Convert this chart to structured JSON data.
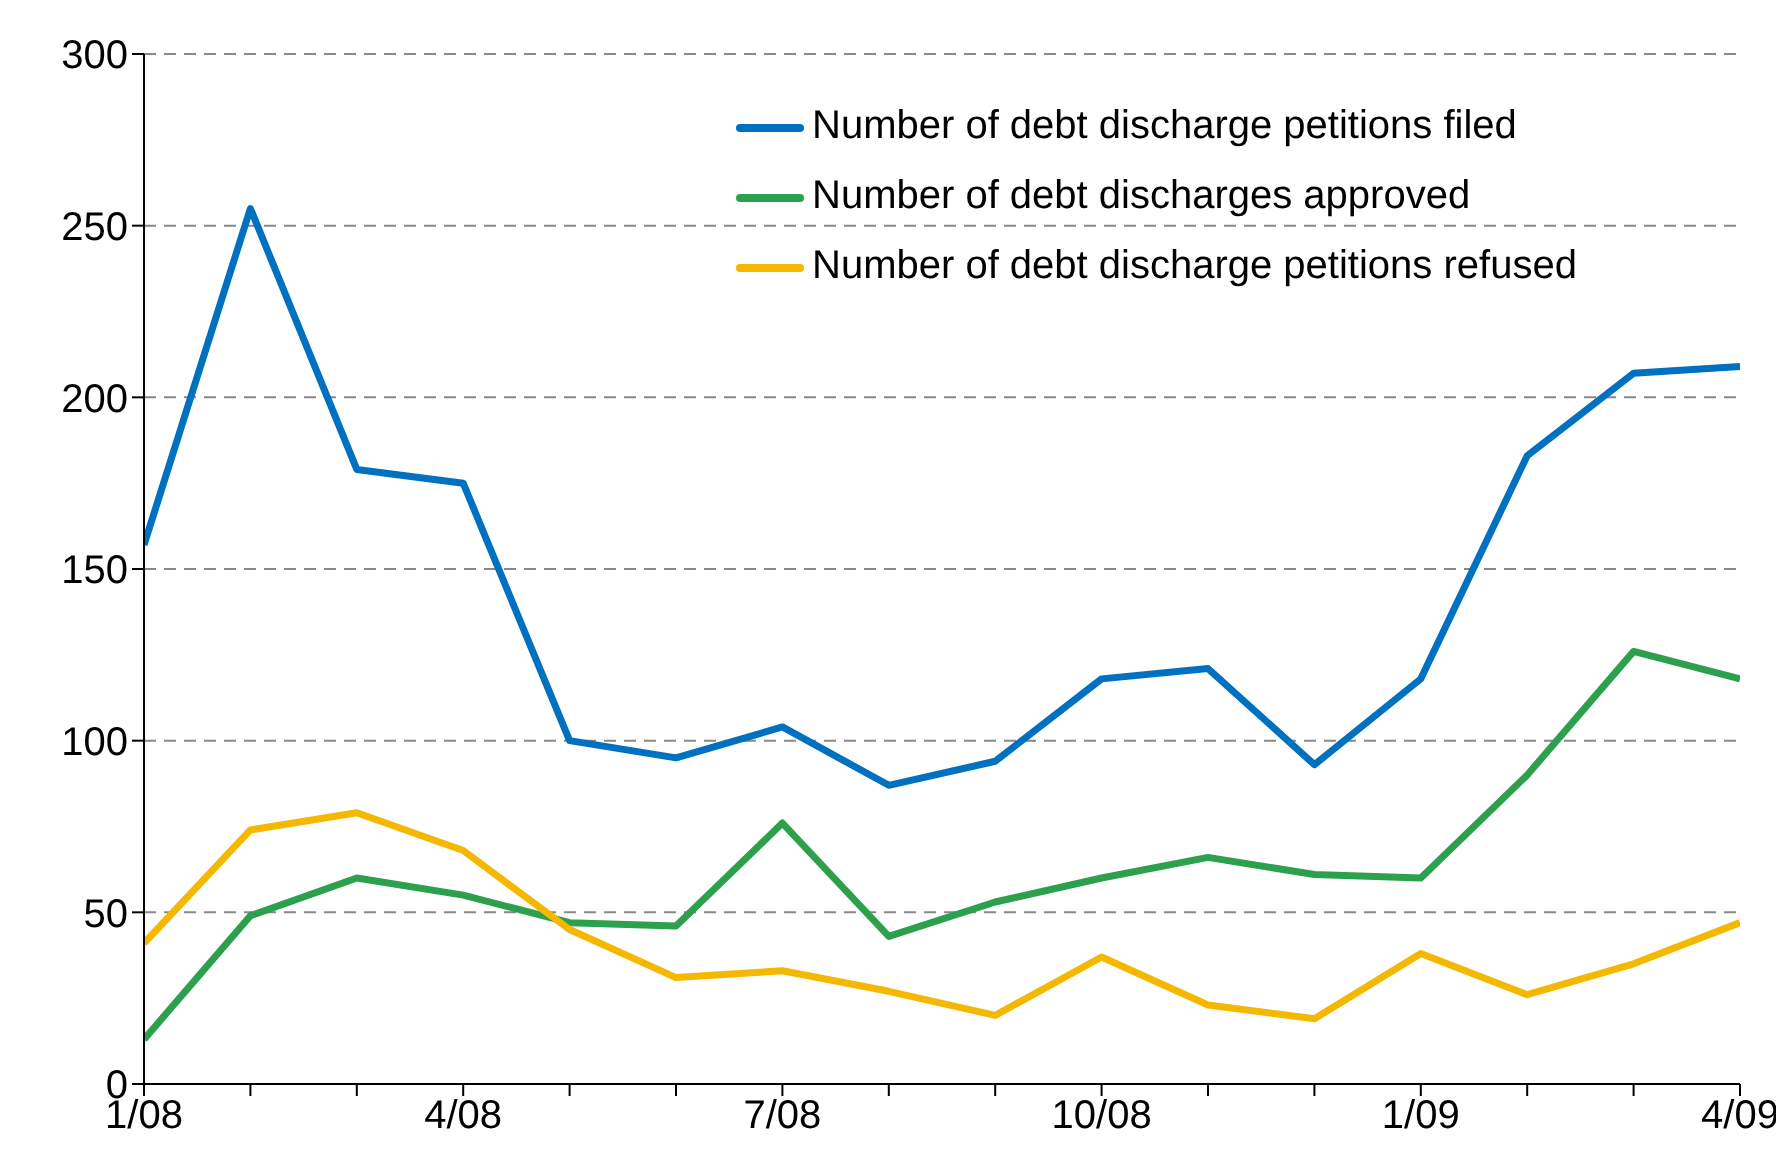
{
  "chart_data": {
    "type": "line",
    "categories": [
      "1/08",
      null,
      null,
      "4/08",
      null,
      null,
      "7/08",
      null,
      null,
      "10/08",
      null,
      null,
      "1/09",
      null,
      null,
      "4/09"
    ],
    "series": [
      {
        "name": "Number of debt discharge petitions filed",
        "color": "#0070c0",
        "values": [
          157,
          255,
          179,
          175,
          100,
          95,
          104,
          87,
          94,
          118,
          121,
          93,
          118,
          183,
          207,
          209
        ]
      },
      {
        "name": "Number of debt discharges approved",
        "color": "#2ca04c",
        "values": [
          13,
          49,
          60,
          55,
          47,
          46,
          76,
          43,
          53,
          60,
          66,
          61,
          60,
          90,
          126,
          118
        ]
      },
      {
        "name": "Number of debt discharge petitions refused",
        "color": "#f5b800",
        "values": [
          41,
          74,
          79,
          68,
          45,
          31,
          33,
          27,
          20,
          37,
          23,
          19,
          38,
          26,
          35,
          47
        ]
      }
    ],
    "ylim": [
      0,
      300
    ],
    "yticks": [
      0,
      50,
      100,
      150,
      200,
      250,
      300
    ],
    "grid": "y",
    "legend": "top right",
    "marker": "none",
    "line_style": "solid"
  }
}
